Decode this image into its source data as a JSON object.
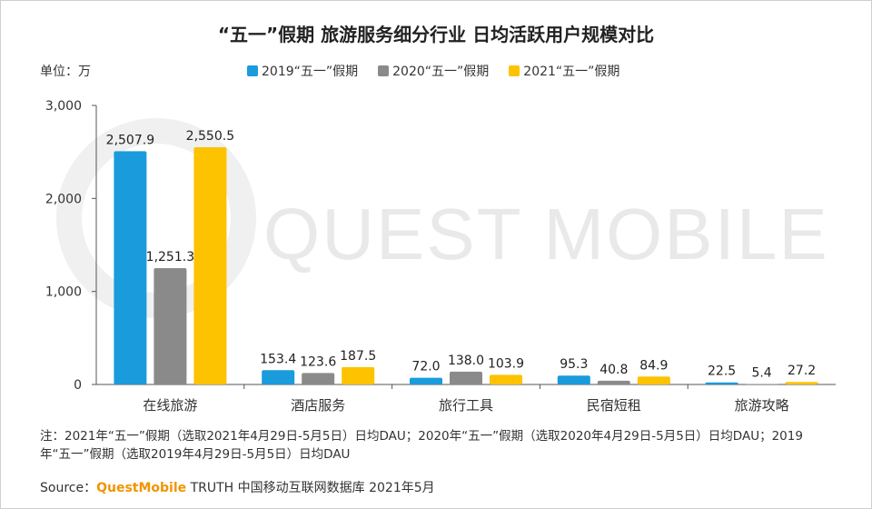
{
  "title": "“五一”假期 旅游服务细分行业 日均活跃用户规模对比",
  "unit_label": "单位：万",
  "watermark": "QUEST MOBILE",
  "chart_data": {
    "type": "bar",
    "categories": [
      "在线旅游",
      "酒店服务",
      "旅行工具",
      "民宿短租",
      "旅游攻略"
    ],
    "series": [
      {
        "name": "2019“五一”假期",
        "color": "#1a9bdc",
        "values": [
          2507.9,
          153.4,
          72.0,
          95.3,
          22.5
        ],
        "labels": [
          "2,507.9",
          "153.4",
          "72.0",
          "95.3",
          "22.5"
        ]
      },
      {
        "name": "2020“五一”假期",
        "color": "#8a8a8a",
        "values": [
          1251.3,
          123.6,
          138.0,
          40.8,
          5.4
        ],
        "labels": [
          "1,251.3",
          "123.6",
          "138.0",
          "40.8",
          "5.4"
        ]
      },
      {
        "name": "2021“五一”假期",
        "color": "#fdc200",
        "values": [
          2550.5,
          187.5,
          103.9,
          84.9,
          27.2
        ],
        "labels": [
          "2,550.5",
          "187.5",
          "103.9",
          "84.9",
          "27.2"
        ]
      }
    ],
    "ylim": [
      0,
      3000
    ],
    "yticks": [
      0,
      1000,
      2000,
      3000
    ],
    "ytick_labels": [
      "0",
      "1,000",
      "2,000",
      "3,000"
    ],
    "grid": false,
    "legend_position": "top"
  },
  "note": "注：2021年“五一”假期（选取2021年4月29日-5月5日）日均DAU；2020年“五一”假期（选取2020年4月29日-5月5日）日均DAU；2019年“五一”假期（选取2019年4月29日-5月5日）日均DAU",
  "source": {
    "prefix": "Source：",
    "brand": "QuestMobile",
    "suffix": " TRUTH 中国移动互联网数据库 2021年5月"
  }
}
